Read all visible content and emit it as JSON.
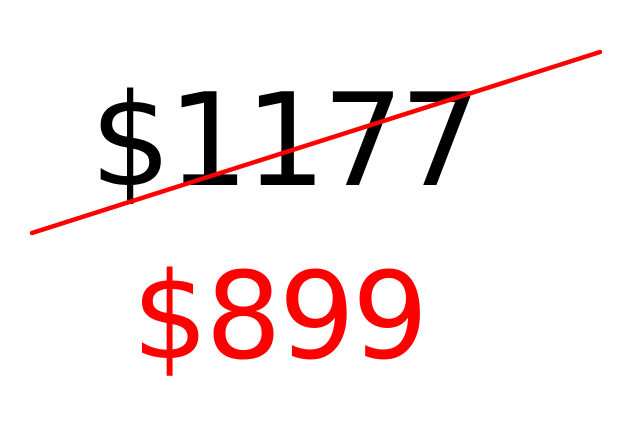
{
  "pricing": {
    "original_price": "$1177",
    "sale_price": "$899"
  },
  "colors": {
    "original_price_text": "#000000",
    "sale_price_text": "#ff0000",
    "strikethrough_line": "#ff0000",
    "background": "#ffffff"
  }
}
